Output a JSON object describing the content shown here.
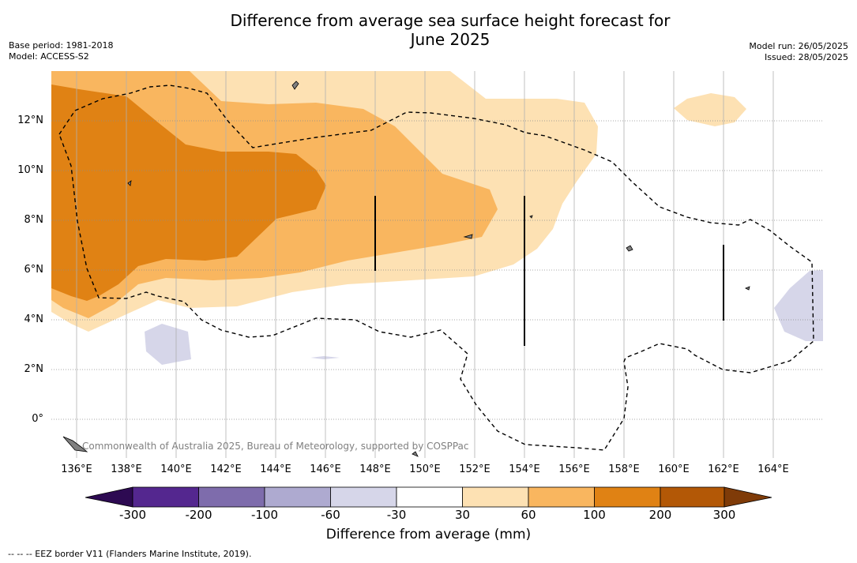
{
  "title_line1": "Difference from average sea surface height forecast for",
  "title_line2": "June 2025",
  "meta_left": [
    "Base period: 1981-2018",
    "Model: ACCESS-S2"
  ],
  "meta_right": [
    "Model run: 26/05/2025",
    "Issued: 28/05/2025"
  ],
  "latitude_labels": [
    "12°N",
    "10°N",
    "8°N",
    "6°N",
    "4°N",
    "2°N",
    "0°"
  ],
  "longitude_labels": [
    "136°E",
    "138°E",
    "140°E",
    "142°E",
    "144°E",
    "146°E",
    "148°E",
    "150°E",
    "152°E",
    "154°E",
    "156°E",
    "158°E",
    "160°E",
    "162°E",
    "164°E"
  ],
  "copyright": "Commonwealth of Australia 2025, Bureau of Meteorology, supported by COSPPac",
  "colorbar": {
    "label": "Difference from average (mm)",
    "ticks": [
      "-300",
      "-200",
      "-100",
      "-60",
      "-30",
      "30",
      "60",
      "100",
      "200",
      "300"
    ],
    "colors": [
      "#2d0a52",
      "#54278f",
      "#7e6cac",
      "#aeaad0",
      "#d6d6e9",
      "#ffffff",
      "#fde1b3",
      "#f9b65f",
      "#e08214",
      "#b35806",
      "#7f3b08"
    ]
  },
  "footer": "--  --  -- EEZ border V11 (Flanders Marine Institute, 2019)."
}
